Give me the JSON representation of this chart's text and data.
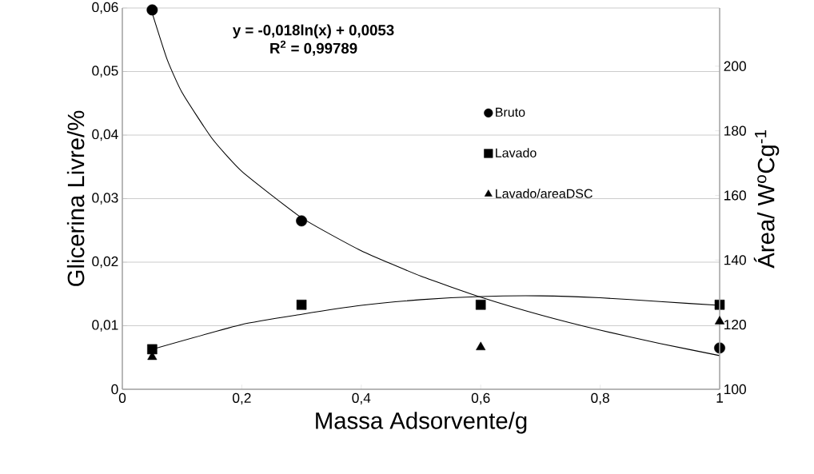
{
  "chart_data": {
    "type": "scatter",
    "xlabel": "Massa Adsorvente/g",
    "ylabel": "Glicerina Livre/%",
    "y2label": "Área/ W$^{o}$Cg$^{-1}$",
    "xlim": [
      0,
      1
    ],
    "ylim": [
      0,
      0.06
    ],
    "y2lim": [
      100,
      218
    ],
    "xticks": [
      0,
      {
        "value": 0.2,
        "label": "0,2"
      },
      {
        "value": 0.4,
        "label": "0,4"
      },
      {
        "value": 0.6,
        "label": "0,6"
      },
      {
        "value": 0.8,
        "label": "0,8"
      },
      1
    ],
    "yticks": [
      0,
      {
        "value": 0.01,
        "label": "0,01"
      },
      {
        "value": 0.02,
        "label": "0,02"
      },
      {
        "value": 0.03,
        "label": "0,03"
      },
      {
        "value": 0.04,
        "label": "0,04"
      },
      {
        "value": 0.05,
        "label": "0,05"
      },
      {
        "value": 0.06,
        "label": "0,06"
      }
    ],
    "y2ticks": [
      100,
      120,
      140,
      160,
      180,
      200
    ],
    "grid": "y",
    "legend": "top right",
    "annotations": [
      "y = -0,018ln(x) + 0,0053",
      "R$^{2}$ = 0,99789"
    ],
    "series": [
      {
        "name": "Bruto",
        "marker": "circle",
        "color": "#000000",
        "x": [
          0.05,
          0.3,
          1
        ],
        "values": [
          0.0597,
          0.0265,
          0.0065
        ]
      },
      {
        "name": "Lavado",
        "marker": "square",
        "color": "#000000",
        "x": [
          0.05,
          0.3,
          0.6,
          1
        ],
        "values": [
          0.0063,
          0.0133,
          0.0133,
          0.0133
        ]
      },
      {
        "name": "Lavado/areaDSC",
        "marker": "triangle",
        "color": "#000000",
        "axis": "y2",
        "x": [
          0.05,
          0.6,
          1
        ],
        "values": [
          110,
          113,
          121
        ]
      },
      {
        "type": "line",
        "marker": "none",
        "line_style": "solid",
        "color": "#000000",
        "x": [
          0.05,
          0.075,
          0.1,
          0.15,
          0.2,
          0.3,
          0.4,
          0.5,
          0.6,
          0.7,
          0.8,
          0.9,
          1
        ],
        "values": [
          0.0592,
          0.0519,
          0.0467,
          0.0395,
          0.0343,
          0.027,
          0.0218,
          0.0178,
          0.0145,
          0.0117,
          0.0093,
          0.0072,
          0.0053
        ]
      },
      {
        "type": "line",
        "marker": "none",
        "line_style": "solid",
        "color": "#000000",
        "x": [
          0.05,
          0.2,
          0.3,
          0.4,
          0.5,
          0.6,
          0.7,
          0.8,
          0.9,
          1
        ],
        "values": [
          0.0063,
          0.0102,
          0.0118,
          0.0132,
          0.0141,
          0.0146,
          0.0147,
          0.0144,
          0.0138,
          0.0132
        ]
      }
    ]
  }
}
